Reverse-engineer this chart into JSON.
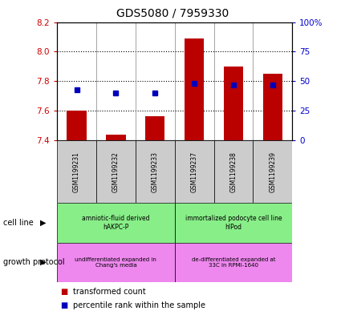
{
  "title": "GDS5080 / 7959330",
  "samples": [
    "GSM1199231",
    "GSM1199232",
    "GSM1199233",
    "GSM1199237",
    "GSM1199238",
    "GSM1199239"
  ],
  "transformed_count": [
    7.6,
    7.44,
    7.56,
    8.09,
    7.9,
    7.85
  ],
  "percentile_rank": [
    43,
    40,
    40,
    48,
    47,
    47
  ],
  "ylim_left": [
    7.4,
    8.2
  ],
  "ylim_right": [
    0,
    100
  ],
  "yticks_left": [
    7.4,
    7.6,
    7.8,
    8.0,
    8.2
  ],
  "yticks_right": [
    0,
    25,
    50,
    75,
    100
  ],
  "ytick_labels_right": [
    "0",
    "25",
    "50",
    "75",
    "100%"
  ],
  "cell_line_labels": [
    "amniotic-fluid derived\nhAKPC-P",
    "immortalized podocyte cell line\nhIPod"
  ],
  "growth_protocol_labels": [
    "undifferentiated expanded in\nChang's media",
    "de-differentiated expanded at\n33C in RPMI-1640"
  ],
  "bar_color": "#bb0000",
  "dot_color": "#0000bb",
  "base_value": 7.4,
  "cell_line_bg": "#88ee88",
  "growth_protocol_bg": "#ee88ee",
  "sample_label_bg": "#cccccc"
}
